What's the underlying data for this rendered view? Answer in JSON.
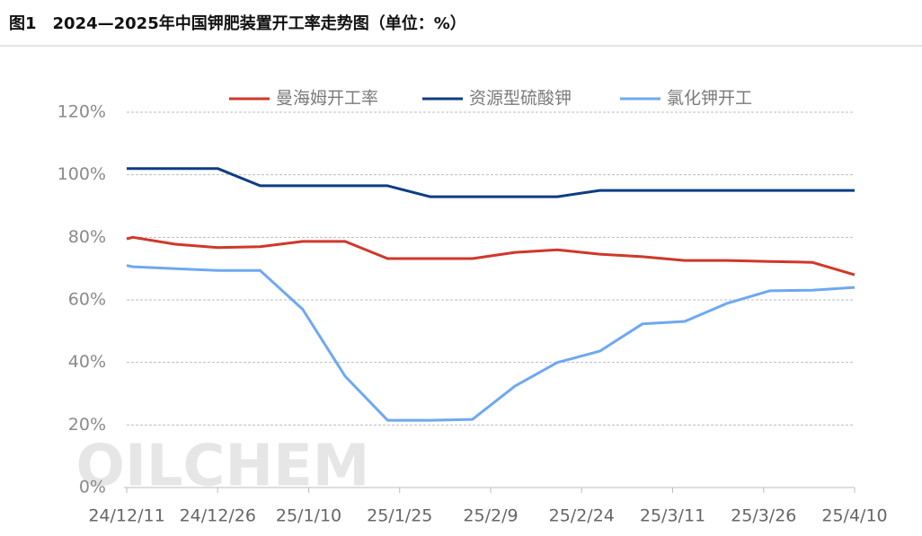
{
  "chart_data": {
    "type": "line",
    "title": "图1　2024—2025年中国钾肥装置开工率走势图（单位：%）",
    "watermark": "OILCHEM",
    "x": [
      "24/12/11",
      "24/12/12",
      "24/12/19",
      "24/12/26",
      "25/1/2",
      "25/1/9",
      "25/1/16",
      "25/1/23",
      "25/1/30",
      "25/2/6",
      "25/2/13",
      "25/2/20",
      "25/2/27",
      "25/3/6",
      "25/3/13",
      "25/3/20",
      "25/3/27",
      "25/4/3",
      "25/4/10"
    ],
    "series": [
      {
        "name": "曼海姆开工率",
        "color": "#d0372a",
        "values": [
          79.5,
          80,
          77.8,
          76.7,
          77,
          78.7,
          78.7,
          73.2,
          73.2,
          73.2,
          75.2,
          76,
          74.6,
          73.8,
          72.6,
          72.6,
          72.3,
          72,
          68
        ]
      },
      {
        "name": "资源型硫酸钾",
        "color": "#0d3c84",
        "values": [
          102,
          102,
          102,
          102,
          96.5,
          96.5,
          96.5,
          96.5,
          93,
          93,
          93,
          93,
          95,
          95,
          95,
          95,
          95,
          95,
          95
        ]
      },
      {
        "name": "氯化钾开工",
        "color": "#6ea8f2",
        "values": [
          71,
          70.6,
          70,
          69.4,
          69.4,
          57,
          35.6,
          21.5,
          21.5,
          21.8,
          32.4,
          40,
          43.6,
          52.3,
          53.1,
          58.9,
          62.9,
          63.1,
          64
        ]
      }
    ],
    "xlim": [
      "24/12/11",
      "25/4/10"
    ],
    "xticks": [
      "24/12/11",
      "24/12/26",
      "25/1/10",
      "25/1/25",
      "25/2/9",
      "25/2/24",
      "25/3/11",
      "25/3/26",
      "25/4/10"
    ],
    "ylim": [
      0,
      120
    ],
    "yticks": [
      {
        "value": 0,
        "label": "0%"
      },
      {
        "value": 20,
        "label": "20%"
      },
      {
        "value": 40,
        "label": "40%"
      },
      {
        "value": 60,
        "label": "60%"
      },
      {
        "value": 80,
        "label": "80%"
      },
      {
        "value": 100,
        "label": "100%"
      },
      {
        "value": 120,
        "label": "120%"
      }
    ],
    "grid": true
  }
}
